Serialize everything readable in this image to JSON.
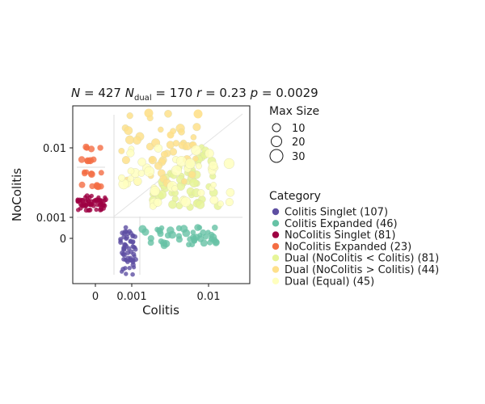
{
  "chart_data": {
    "type": "scatter",
    "title": {
      "n_label": "N",
      "n_value": "427",
      "ndual_label": "N",
      "ndual_sub": "dual",
      "ndual_value": "170",
      "r_label": "r",
      "r_value": "0.23",
      "p_label": "p",
      "p_value": "0.0029"
    },
    "xlabel": "Colitis",
    "ylabel": "NoColitis",
    "x_ticks": [
      "0",
      "0.001",
      "0.01"
    ],
    "y_ticks": [
      "0.01",
      "0.001",
      "0"
    ],
    "grid": false,
    "legend_placement": "right",
    "size_legend": {
      "title": "Max Size",
      "entries": [
        "10",
        "20",
        "30"
      ]
    },
    "category_legend": {
      "title": "Category",
      "entries": [
        {
          "label": "Colitis Singlet (107)",
          "color": "#5E4FA2"
        },
        {
          "label": "Colitis Expanded (46)",
          "color": "#66C2A5"
        },
        {
          "label": "NoColitis Singlet (81)",
          "color": "#9E0142"
        },
        {
          "label": "NoColitis Expanded (23)",
          "color": "#F46D43"
        },
        {
          "label": "Dual (NoColitis < Colitis) (81)",
          "color": "#E6F598"
        },
        {
          "label": "Dual (NoColitis > Colitis) (44)",
          "color": "#FEE08B"
        },
        {
          "label": "Dual (Equal) (45)",
          "color": "#FFFFBF"
        }
      ]
    },
    "series": [
      {
        "name": "Colitis Singlet (107)",
        "color": "#5E4FA2",
        "count": 107
      },
      {
        "name": "Colitis Expanded (46)",
        "color": "#66C2A5",
        "count": 46
      },
      {
        "name": "NoColitis Singlet (81)",
        "color": "#9E0142",
        "count": 81
      },
      {
        "name": "NoColitis Expanded (23)",
        "color": "#F46D43",
        "count": 23
      },
      {
        "name": "Dual (NoColitis < Colitis) (81)",
        "color": "#E6F598",
        "count": 81
      },
      {
        "name": "Dual (NoColitis > Colitis) (44)",
        "color": "#FEE08B",
        "count": 44
      },
      {
        "name": "Dual (Equal) (45)",
        "color": "#FFFFBF",
        "count": 45
      }
    ]
  }
}
